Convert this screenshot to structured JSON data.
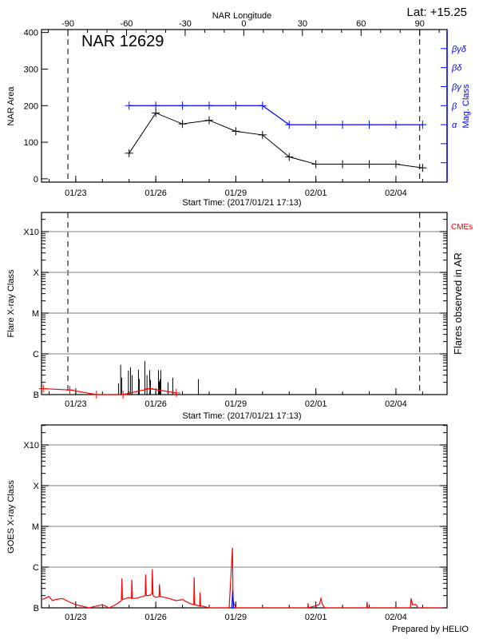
{
  "header": {
    "lat_label": "Lat: +15.25",
    "prepared_by": "Prepared by HELIO"
  },
  "chart_data": [
    {
      "type": "line",
      "title": "NAR 12629",
      "xlabel": "Start Time: (2017/01/21 17:13)",
      "x2label": "NAR Longitude",
      "ylabel": "NAR Area",
      "y2label": "Mag. Class",
      "start_time": "2017-01-21 17:13",
      "xlim": [
        "2017-01-21 17:13",
        "2017-02-05 22:00"
      ],
      "x_ticks": [
        "01/23",
        "01/26",
        "01/29",
        "02/01",
        "02/04"
      ],
      "x2lim": [
        -103.5,
        104
      ],
      "x2_ticks": [
        -90,
        -60,
        -30,
        0,
        30,
        60,
        90
      ],
      "limb_longitudes": [
        -90,
        90
      ],
      "ylim": [
        -9,
        408
      ],
      "y_ticks": [
        0,
        100,
        200,
        300,
        400
      ],
      "y2_ticks": [
        "",
        "",
        "α",
        "β",
        "βγ",
        "βδ",
        "βγδ"
      ],
      "dates": [
        "2017-01-25",
        "2017-01-26",
        "2017-01-27",
        "2017-01-28",
        "2017-01-29",
        "2017-01-30",
        "2017-01-31",
        "2017-02-01",
        "2017-02-02",
        "2017-02-03",
        "2017-02-04",
        "2017-02-05"
      ],
      "area": [
        70,
        180,
        150,
        160,
        130,
        120,
        60,
        40,
        40,
        40,
        40,
        30
      ],
      "mag_class": [
        "β",
        "β",
        "β",
        "β",
        "β",
        "β",
        "α",
        "α",
        "α",
        "α",
        "α",
        "α"
      ],
      "colors": {
        "area": "#000000",
        "mag_class": "#0000ff"
      }
    },
    {
      "type": "bar",
      "xlabel": "Start Time: (2017/01/21 17:13)",
      "ylabel": "Flare X-ray Class",
      "y2label": "Flares observed in AR",
      "y_scale": "log",
      "y_ticks": [
        "B",
        "C",
        "M",
        "X",
        "X10"
      ],
      "x_ticks": [
        "01/23",
        "01/26",
        "01/29",
        "02/01",
        "02/04"
      ],
      "cme_label": "CMEs",
      "flares": [
        [
          "2017-01-24 14:28",
          "B1.9"
        ],
        [
          "2017-01-24 16:25",
          "B5.4"
        ],
        [
          "2017-01-24 17:21",
          "B2.6"
        ],
        [
          "2017-01-24 23:23",
          "B3.9"
        ],
        [
          "2017-01-25 01:15",
          "B4.7"
        ],
        [
          "2017-01-25 02:41",
          "B3.0"
        ],
        [
          "2017-01-25 08:25",
          "B4.1"
        ],
        [
          "2017-01-25 09:09",
          "B2.4"
        ],
        [
          "2017-01-25 14:10",
          "B6.6"
        ],
        [
          "2017-01-25 16:06",
          "B3.0"
        ],
        [
          "2017-01-25 18:29",
          "B4.0"
        ],
        [
          "2017-01-25 19:12",
          "B2.3"
        ],
        [
          "2017-01-26 02:23",
          "B4.0"
        ],
        [
          "2017-01-26 03:06",
          "B2.1"
        ],
        [
          "2017-01-26 03:49",
          "B2.4"
        ],
        [
          "2017-01-26 04:32",
          "B4.0"
        ],
        [
          "2017-01-26 11:00",
          "B2.0"
        ],
        [
          "2017-01-26 15:17",
          "B2.6"
        ],
        [
          "2017-01-27 14:17",
          "B2.4"
        ]
      ],
      "cmes": [
        [
          "2017-01-21 18:48",
          "B1.4"
        ],
        [
          "2017-01-22 18:40",
          "B1.3"
        ],
        [
          "2017-01-23 18:40",
          "B1.0"
        ],
        [
          "2017-01-24 18:35",
          "B1.0"
        ],
        [
          "2017-01-25 18:29",
          "B1.4"
        ],
        [
          "2017-01-26 18:28",
          "B1.1"
        ]
      ],
      "colors": {
        "flares": "#000000",
        "cmes": "#ff0000",
        "grid": "#999999"
      }
    },
    {
      "type": "line",
      "ylabel": "GOES X-ray Class",
      "y_scale": "log",
      "y_ticks": [
        "B",
        "C",
        "M",
        "X",
        "X10"
      ],
      "x_ticks": [
        "01/23",
        "01/26",
        "01/29",
        "02/01",
        "02/04"
      ],
      "series": [
        {
          "color": "#ff0000",
          "points": [
            [
              "2017-01-21 18:00",
              "B1.6"
            ],
            [
              "2017-01-22 00:00",
              "B1.9"
            ],
            [
              "2017-01-22 03:00",
              "B1.5"
            ],
            [
              "2017-01-22 06:00",
              "B1.6"
            ],
            [
              "2017-01-22 12:00",
              "B1.7"
            ],
            [
              "2017-01-22 18:00",
              "B1.4"
            ],
            [
              "2017-01-23 00:00",
              "B1.2"
            ],
            [
              "2017-01-23 06:00",
              "B1.1"
            ],
            [
              "2017-01-23 12:00",
              "B1.0"
            ],
            [
              "2017-01-23 18:00",
              "B1.1"
            ],
            [
              "2017-01-24 00:00",
              "B1.2"
            ],
            [
              "2017-01-24 06:00",
              "B1.0"
            ],
            [
              "2017-01-24 12:00",
              "B1.2"
            ],
            [
              "2017-01-24 17:00",
              "B1.5"
            ],
            [
              "2017-01-24 17:30",
              "B5.3"
            ],
            [
              "2017-01-24 18:00",
              "B1.6"
            ],
            [
              "2017-01-25 00:00",
              "B1.8"
            ],
            [
              "2017-01-25 02:10",
              "B1.7"
            ],
            [
              "2017-01-25 02:25",
              "B4.9"
            ],
            [
              "2017-01-25 03:00",
              "B1.7"
            ],
            [
              "2017-01-25 06:00",
              "B1.7"
            ],
            [
              "2017-01-25 12:00",
              "B1.9"
            ],
            [
              "2017-01-25 14:30",
              "B2.0"
            ],
            [
              "2017-01-25 14:50",
              "B6.6"
            ],
            [
              "2017-01-25 15:30",
              "B2.0"
            ],
            [
              "2017-01-25 18:00",
              "B2.0"
            ],
            [
              "2017-01-25 20:30",
              "B2.2"
            ],
            [
              "2017-01-25 20:55",
              "B8.9"
            ],
            [
              "2017-01-25 21:30",
              "B2.0"
            ],
            [
              "2017-01-26 00:00",
              "B1.8"
            ],
            [
              "2017-01-26 03:00",
              "B1.9"
            ],
            [
              "2017-01-26 03:15",
              "B3.8"
            ],
            [
              "2017-01-26 04:00",
              "B1.9"
            ],
            [
              "2017-01-26 12:00",
              "B1.7"
            ],
            [
              "2017-01-26 18:00",
              "B1.5"
            ],
            [
              "2017-01-27 00:00",
              "B1.6"
            ],
            [
              "2017-01-27 06:00",
              "B1.3"
            ],
            [
              "2017-01-27 10:10",
              "B1.2"
            ],
            [
              "2017-01-27 10:30",
              "B5.6"
            ],
            [
              "2017-01-27 11:00",
              "B1.2"
            ],
            [
              "2017-01-27 15:30",
              "B1.1"
            ],
            [
              "2017-01-27 15:50",
              "B2.4"
            ],
            [
              "2017-01-27 16:20",
              "B1.1"
            ],
            [
              "2017-01-27 18:00",
              "B1.1"
            ],
            [
              "2017-01-28 00:00",
              "B1.0"
            ],
            [
              "2017-01-28 06:00",
              "A8.0"
            ],
            [
              "2017-01-28 12:00",
              "A8.0"
            ],
            [
              "2017-01-28 18:00",
              "B1.0"
            ],
            [
              "2017-01-28 20:30",
              "C1.6"
            ],
            [
              "2017-01-28 21:00",
              "C3.0"
            ],
            [
              "2017-01-28 21:30",
              "B1.5"
            ],
            [
              "2017-01-29 00:00",
              "A8.0"
            ],
            [
              "2017-01-31 16:40",
              "A8.0"
            ],
            [
              "2017-01-31 17:00",
              "B1.3"
            ],
            [
              "2017-01-31 17:20",
              "A8.0"
            ],
            [
              "2017-02-01 03:00",
              "B1.2"
            ],
            [
              "2017-02-01 04:35",
              "B1.7"
            ],
            [
              "2017-02-01 06:00",
              "B1.2"
            ],
            [
              "2017-02-01 08:00",
              "A8.0"
            ],
            [
              "2017-02-02 21:40",
              "A8.0"
            ],
            [
              "2017-02-02 22:05",
              "B1.4"
            ],
            [
              "2017-02-02 22:30",
              "A8.0"
            ],
            [
              "2017-02-04 13:00",
              "A8.0"
            ],
            [
              "2017-02-04 13:40",
              "B1.7"
            ],
            [
              "2017-02-04 15:00",
              "B1.2"
            ],
            [
              "2017-02-04 18:00",
              "B1.2"
            ],
            [
              "2017-02-04 20:00",
              "A8.0"
            ],
            [
              "2017-02-05 17:00",
              "B1.0"
            ],
            [
              "2017-02-05 18:00",
              "A8.0"
            ]
          ]
        },
        {
          "color": "#0000ff",
          "points": [
            [
              "2017-01-28 20:30",
              "A8.0"
            ],
            [
              "2017-01-28 21:10",
              "B2.7"
            ],
            [
              "2017-01-28 22:00",
              "A8.0"
            ]
          ]
        }
      ]
    }
  ]
}
